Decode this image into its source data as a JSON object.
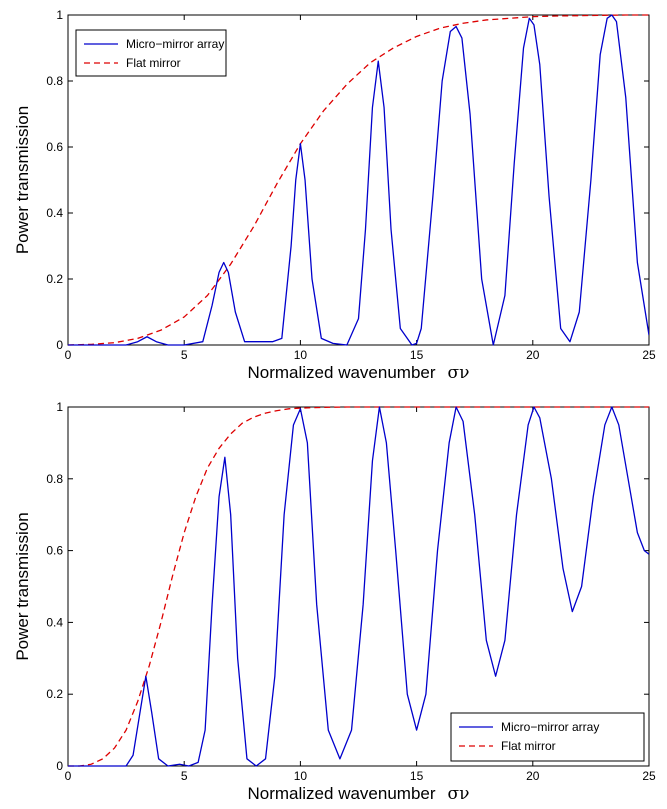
{
  "chart_data": [
    {
      "type": "line",
      "xlabel": "Normalized wavenumber",
      "xlabel_symbol": "σν",
      "ylabel": "Power transmission",
      "xlim": [
        0,
        25
      ],
      "ylim": [
        0,
        1
      ],
      "xticks": [
        0,
        5,
        10,
        15,
        20,
        25
      ],
      "yticks": [
        0,
        0.2,
        0.4,
        0.6,
        0.8,
        1
      ],
      "ytick_labels": [
        "0",
        "0.2",
        "0.4",
        "0.6",
        "0.8",
        "1"
      ],
      "grid": false,
      "legend_position": "top-left",
      "series": [
        {
          "name": "Micro−mirror array",
          "style": "solid",
          "color": "#0000cc",
          "x": [
            0,
            2.5,
            3.0,
            3.4,
            3.8,
            4.3,
            5,
            5.8,
            6.2,
            6.5,
            6.7,
            6.9,
            7.2,
            7.6,
            8,
            8.4,
            8.8,
            9.2,
            9.6,
            9.8,
            10,
            10.2,
            10.5,
            10.9,
            11.4,
            12,
            12.5,
            12.8,
            13.1,
            13.35,
            13.6,
            13.9,
            14.3,
            14.8,
            15,
            15.2,
            15.7,
            16.1,
            16.45,
            16.7,
            16.95,
            17.3,
            17.8,
            18.3,
            18.8,
            19.2,
            19.6,
            19.85,
            20.05,
            20.3,
            20.7,
            21.2,
            21.6,
            22.0,
            22.5,
            22.9,
            23.2,
            23.4,
            23.6,
            24,
            24.5,
            25
          ],
          "y": [
            0,
            0,
            0.01,
            0.025,
            0.01,
            0,
            0,
            0.01,
            0.12,
            0.22,
            0.25,
            0.22,
            0.1,
            0.01,
            0.01,
            0.01,
            0.01,
            0.02,
            0.3,
            0.5,
            0.61,
            0.5,
            0.2,
            0.02,
            0.005,
            0,
            0.08,
            0.35,
            0.72,
            0.86,
            0.72,
            0.35,
            0.05,
            0,
            0.005,
            0.05,
            0.45,
            0.8,
            0.95,
            0.965,
            0.93,
            0.7,
            0.2,
            0,
            0.15,
            0.55,
            0.9,
            0.99,
            0.97,
            0.85,
            0.45,
            0.05,
            0.01,
            0.1,
            0.5,
            0.88,
            0.99,
            1.0,
            0.98,
            0.75,
            0.25,
            0.03
          ]
        },
        {
          "name": "Flat mirror",
          "style": "dashed",
          "color": "#dd0000",
          "x": [
            0,
            1,
            2,
            3,
            4,
            5,
            6,
            7,
            8,
            9,
            10,
            11,
            12,
            13,
            14,
            15,
            16,
            17,
            18,
            19,
            20,
            21,
            22,
            23,
            24,
            25
          ],
          "y": [
            0,
            0.002,
            0.007,
            0.02,
            0.045,
            0.085,
            0.15,
            0.245,
            0.36,
            0.49,
            0.61,
            0.71,
            0.79,
            0.855,
            0.9,
            0.935,
            0.96,
            0.975,
            0.985,
            0.99,
            0.995,
            0.997,
            0.998,
            0.999,
            1.0,
            1.0
          ]
        }
      ]
    },
    {
      "type": "line",
      "xlabel": "Normalized wavenumber",
      "xlabel_symbol": "σν",
      "ylabel": "Power transmission",
      "xlim": [
        0,
        25
      ],
      "ylim": [
        0,
        1
      ],
      "xticks": [
        0,
        5,
        10,
        15,
        20,
        25
      ],
      "yticks": [
        0,
        0.2,
        0.4,
        0.6,
        0.8,
        1
      ],
      "ytick_labels": [
        "0",
        "0.2",
        "0.4",
        "0.6",
        "0.8",
        "1"
      ],
      "grid": false,
      "legend_position": "bottom-right",
      "series": [
        {
          "name": "Micro−mirror array",
          "style": "solid",
          "color": "#0000cc",
          "x": [
            0,
            2.5,
            2.8,
            3.1,
            3.35,
            3.6,
            3.9,
            4.3,
            4.8,
            5.2,
            5.6,
            5.9,
            6.2,
            6.5,
            6.75,
            7.0,
            7.3,
            7.7,
            8.1,
            8.5,
            8.9,
            9.3,
            9.7,
            10.0,
            10.3,
            10.7,
            11.2,
            11.7,
            12.2,
            12.7,
            13.1,
            13.4,
            13.7,
            14.1,
            14.6,
            15.0,
            15.4,
            15.9,
            16.4,
            16.7,
            17.0,
            17.5,
            18.0,
            18.4,
            18.8,
            19.3,
            19.8,
            20.05,
            20.3,
            20.8,
            21.3,
            21.7,
            22.1,
            22.6,
            23.1,
            23.4,
            23.7,
            24.1,
            24.5,
            24.8,
            25
          ],
          "y": [
            0,
            0,
            0.03,
            0.15,
            0.25,
            0.15,
            0.02,
            0,
            0.005,
            0,
            0.01,
            0.1,
            0.45,
            0.75,
            0.86,
            0.7,
            0.3,
            0.02,
            0,
            0.02,
            0.25,
            0.7,
            0.95,
            0.995,
            0.9,
            0.45,
            0.1,
            0.02,
            0.1,
            0.45,
            0.85,
            1.0,
            0.9,
            0.6,
            0.2,
            0.1,
            0.2,
            0.6,
            0.9,
            1.0,
            0.96,
            0.7,
            0.35,
            0.25,
            0.35,
            0.7,
            0.95,
            1.0,
            0.97,
            0.8,
            0.55,
            0.43,
            0.5,
            0.75,
            0.95,
            1.0,
            0.95,
            0.8,
            0.65,
            0.6,
            0.59
          ]
        },
        {
          "name": "Flat mirror",
          "style": "dashed",
          "color": "#dd0000",
          "x": [
            0,
            0.5,
            1,
            1.5,
            2,
            2.5,
            3,
            3.5,
            4,
            4.5,
            5,
            5.5,
            6,
            6.5,
            7,
            7.5,
            8,
            8.5,
            9,
            9.5,
            10,
            11,
            12,
            13,
            14,
            15,
            17,
            20,
            25
          ],
          "y": [
            0,
            0,
            0.005,
            0.02,
            0.05,
            0.1,
            0.18,
            0.28,
            0.4,
            0.53,
            0.65,
            0.75,
            0.83,
            0.885,
            0.925,
            0.955,
            0.972,
            0.983,
            0.99,
            0.995,
            0.997,
            0.999,
            1.0,
            1.0,
            1.0,
            1.0,
            1.0,
            1.0,
            1.0
          ]
        }
      ]
    }
  ]
}
